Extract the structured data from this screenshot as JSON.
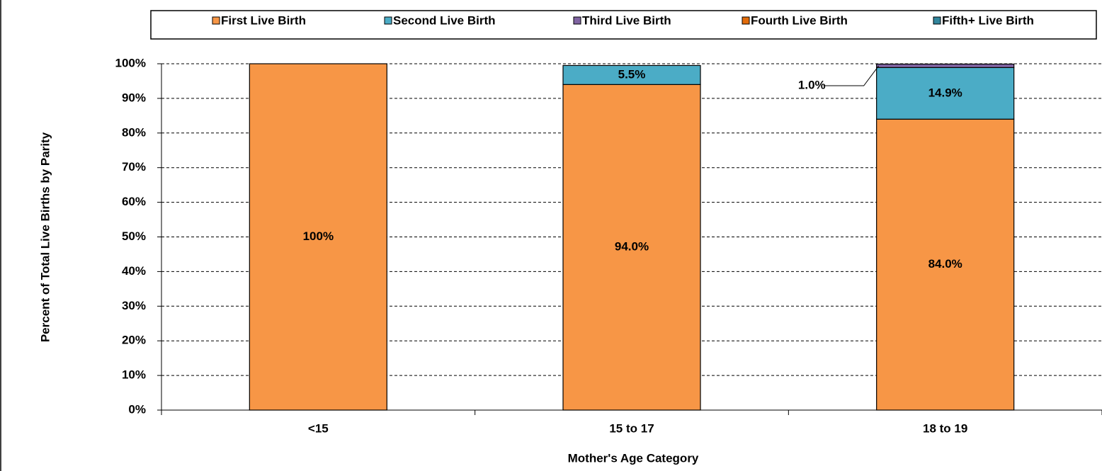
{
  "chart_data": {
    "type": "stacked_bar",
    "x_label": "Mother's Age Category",
    "y_label": "Percent of Total Live Births by Parity",
    "categories": [
      "<15",
      "15 to 17",
      "18 to 19"
    ],
    "series": [
      {
        "name": "First Live Birth",
        "color": "#f79646",
        "values": [
          100,
          94.0,
          84.0
        ],
        "value_labels": [
          "100%",
          "94.0%",
          "84.0%"
        ]
      },
      {
        "name": "Second Live Birth",
        "color": "#4bacc6",
        "values": [
          0,
          5.5,
          14.9
        ],
        "value_labels": [
          null,
          "5.5%",
          "14.9%"
        ]
      },
      {
        "name": "Third Live Birth",
        "color": "#8064a2",
        "values": [
          0,
          0,
          1.0
        ],
        "value_labels": [
          null,
          null,
          "1.0%"
        ]
      },
      {
        "name": "Fourth Live Birth",
        "color": "#e26b0a",
        "values": [
          0,
          0,
          0
        ],
        "value_labels": [
          null,
          null,
          null
        ]
      },
      {
        "name": "Fifth+ Live Birth",
        "color": "#31859c",
        "values": [
          0,
          0,
          0
        ],
        "value_labels": [
          null,
          null,
          null
        ]
      }
    ],
    "ylim": [
      0,
      100
    ],
    "yticks": [
      {
        "value": 0,
        "label": "0%"
      },
      {
        "value": 10,
        "label": "10%"
      },
      {
        "value": 20,
        "label": "20%"
      },
      {
        "value": 30,
        "label": "30%"
      },
      {
        "value": 40,
        "label": "40%"
      },
      {
        "value": 50,
        "label": "50%"
      },
      {
        "value": 60,
        "label": "60%"
      },
      {
        "value": 70,
        "label": "70%"
      },
      {
        "value": 80,
        "label": "80%"
      },
      {
        "value": 90,
        "label": "90%"
      },
      {
        "value": 100,
        "label": "100%"
      }
    ],
    "grid": true,
    "legend": "top"
  }
}
